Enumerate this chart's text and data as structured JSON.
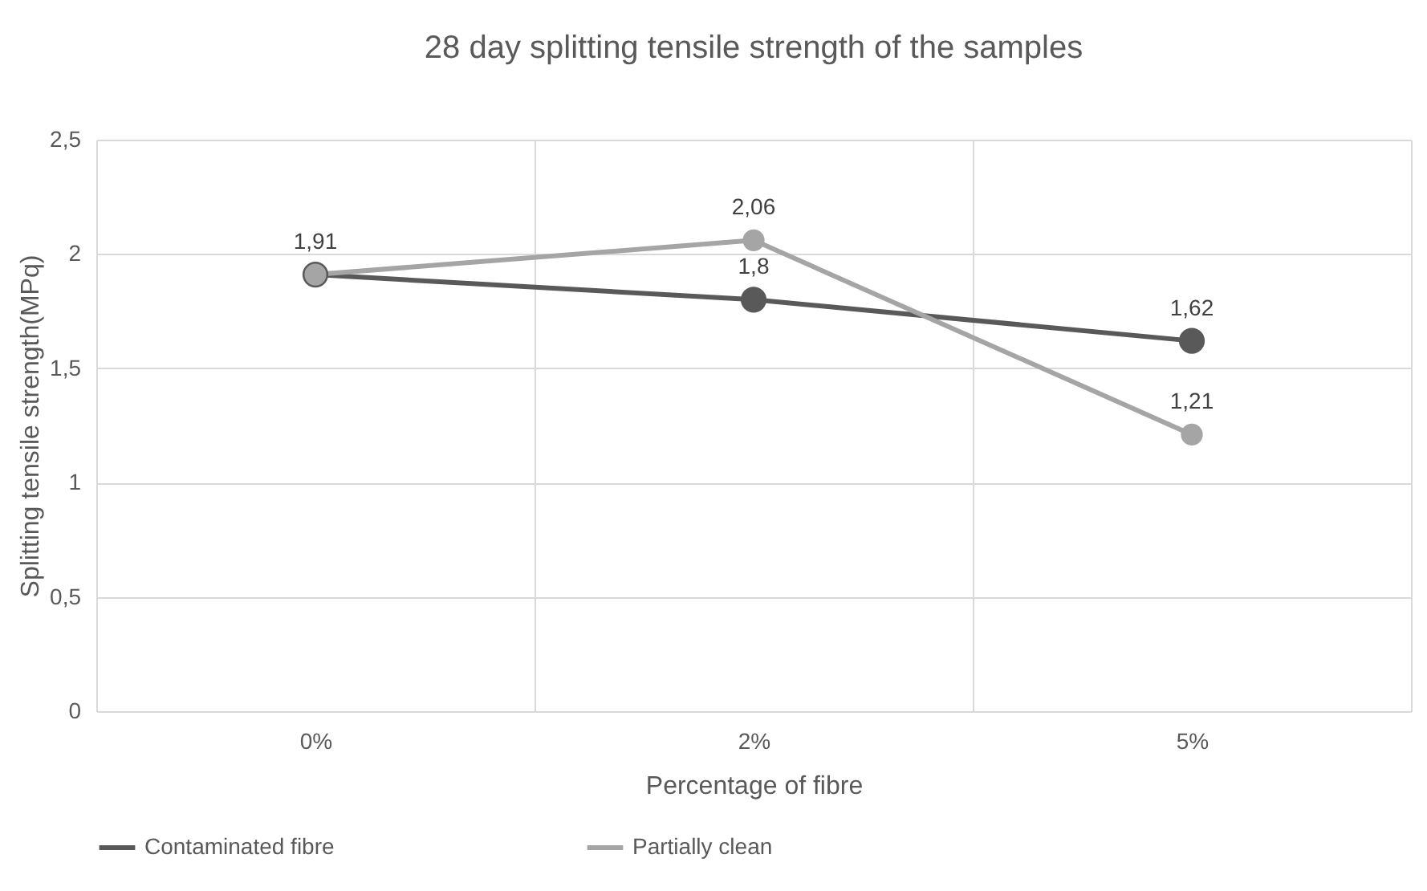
{
  "chart_data": {
    "type": "line",
    "title": "28 day splitting tensile strength of the samples",
    "xlabel": "Percentage of fibre",
    "ylabel": "Splitting tensile strength(MPq)",
    "categories": [
      "0%",
      "2%",
      "5%"
    ],
    "series": [
      {
        "name": "Contaminated fibre",
        "color": "#595959",
        "values": [
          1.91,
          1.8,
          1.62
        ],
        "value_labels": [
          null,
          "1,8",
          "1,62"
        ]
      },
      {
        "name": "Partially clean",
        "color": "#a5a5a5",
        "values": [
          1.91,
          2.06,
          1.21
        ],
        "value_labels": [
          "1,91",
          "2,06",
          "1,21"
        ]
      }
    ],
    "ylim": [
      0,
      2.5
    ],
    "yticks": [
      0,
      {
        "value": 0.5,
        "label": "0,5"
      },
      1,
      {
        "value": 1.5,
        "label": "1,5"
      },
      2,
      {
        "value": 2.5,
        "label": "2,5"
      }
    ],
    "grid": true,
    "legend": "bottom",
    "marker": "circle",
    "line_style": "solid"
  }
}
